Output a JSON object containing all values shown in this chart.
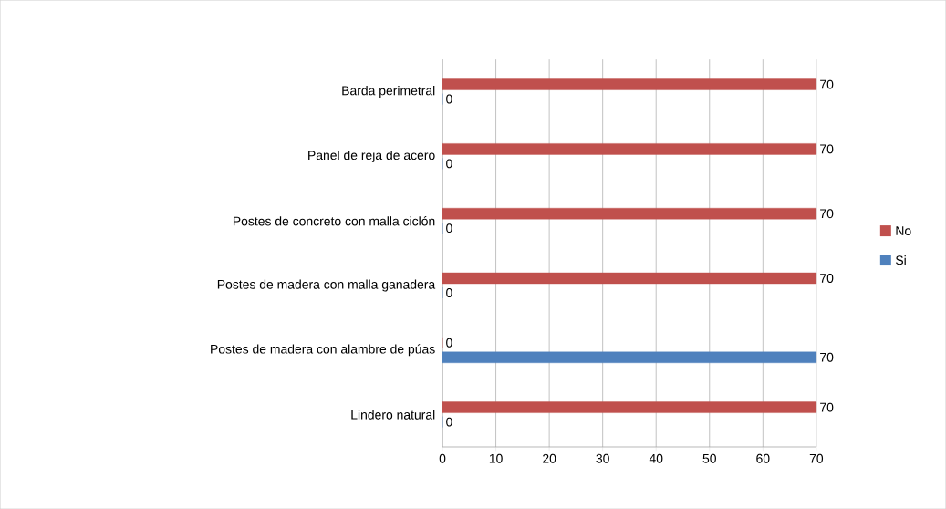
{
  "chart_data": {
    "type": "bar",
    "orientation": "horizontal",
    "categories": [
      "Barda perimetral",
      "Panel de reja de acero",
      "Postes de concreto con malla ciclón",
      "Postes de madera con malla ganadera",
      "Postes de madera con alambre de púas",
      "Lindero natural"
    ],
    "series": [
      {
        "name": "No",
        "color": "#c0504d",
        "values": [
          70,
          70,
          70,
          70,
          0,
          70
        ]
      },
      {
        "name": "Si",
        "color": "#4f81bd",
        "values": [
          0,
          0,
          0,
          0,
          70,
          0
        ]
      }
    ],
    "xlim": [
      0,
      70
    ],
    "xticks": [
      0,
      10,
      20,
      30,
      40,
      50,
      60,
      70
    ],
    "grid": "x",
    "legend": "right",
    "data_labels": true
  }
}
